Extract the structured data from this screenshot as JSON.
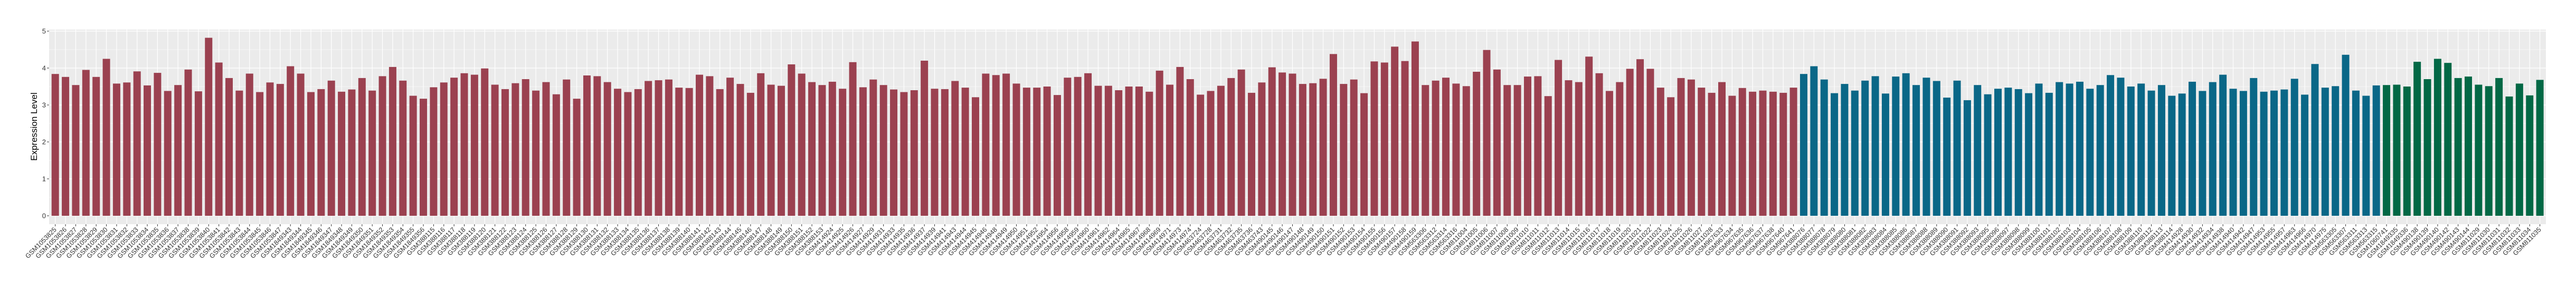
{
  "chart_data": {
    "type": "bar",
    "title": "",
    "xlabel": "",
    "ylabel": "Expression Level",
    "ylim": [
      0,
      5
    ],
    "yticks": [
      0,
      1,
      2,
      3,
      4,
      5
    ],
    "grid": true,
    "panel_background": "#EBEBEB",
    "series": [
      {
        "color": "#9B4150",
        "categories": [
          "GSM1053825",
          "GSM1053826",
          "GSM1053827",
          "GSM1053828",
          "GSM1053829",
          "GSM1053830",
          "GSM1053831",
          "GSM1053832",
          "GSM1053833",
          "GSM1053834",
          "GSM1053835",
          "GSM1053836",
          "GSM1053837",
          "GSM1053838",
          "GSM1053839",
          "GSM1053840",
          "GSM1053841",
          "GSM1053842",
          "GSM1053843",
          "GSM1053844",
          "GSM1053845",
          "GSM1053846",
          "GSM1053847",
          "GSM1849343",
          "GSM1849344",
          "GSM1849345",
          "GSM1849346",
          "GSM1849347",
          "GSM1849348",
          "GSM1849349",
          "GSM1849350",
          "GSM1849351",
          "GSM1849352",
          "GSM1849353",
          "GSM1849354",
          "GSM1849355",
          "GSM1849356",
          "GSM388115",
          "GSM388116",
          "GSM388117",
          "GSM388118",
          "GSM388119",
          "GSM388120",
          "GSM388121",
          "GSM388122",
          "GSM388123",
          "GSM388124",
          "GSM388125",
          "GSM388126",
          "GSM388127",
          "GSM388128",
          "GSM388129",
          "GSM388130",
          "GSM388131",
          "GSM388132",
          "GSM388133",
          "GSM388134",
          "GSM388135",
          "GSM388136",
          "GSM388137",
          "GSM388138",
          "GSM388139",
          "GSM388140",
          "GSM388141",
          "GSM388142",
          "GSM388143",
          "GSM388144",
          "GSM388145",
          "GSM388146",
          "GSM388147",
          "GSM388148",
          "GSM388149",
          "GSM388150",
          "GSM388151",
          "GSM388152",
          "GSM388153",
          "GSM414924",
          "GSM414925",
          "GSM414926",
          "GSM414927",
          "GSM414929",
          "GSM414931",
          "GSM414933",
          "GSM414935",
          "GSM414936",
          "GSM414937",
          "GSM414939",
          "GSM414941",
          "GSM414943",
          "GSM414944",
          "GSM414945",
          "GSM414946",
          "GSM414948",
          "GSM414949",
          "GSM414950",
          "GSM414951",
          "GSM414952",
          "GSM414954",
          "GSM414956",
          "GSM414958",
          "GSM414959",
          "GSM414960",
          "GSM414961",
          "GSM414962",
          "GSM414964",
          "GSM414965",
          "GSM414967",
          "GSM414968",
          "GSM414969",
          "GSM414971",
          "GSM414973",
          "GSM414974",
          "GSM463724",
          "GSM463728",
          "GSM463731",
          "GSM463732",
          "GSM463735",
          "GSM463736",
          "GSM463743",
          "GSM490145",
          "GSM490146",
          "GSM490147",
          "GSM490148",
          "GSM490149",
          "GSM490150",
          "GSM490151",
          "GSM490152",
          "GSM490153",
          "GSM490154",
          "GSM490155",
          "GSM490156",
          "GSM490157",
          "GSM490158",
          "GSM490159",
          "GSM563306",
          "GSM563312",
          "GSM563314",
          "GSM563316",
          "GSM811004",
          "GSM811005",
          "GSM811006",
          "GSM811007",
          "GSM811008",
          "GSM811009",
          "GSM811010",
          "GSM811011",
          "GSM811012",
          "GSM811013",
          "GSM811014",
          "GSM811015",
          "GSM811016",
          "GSM811017",
          "GSM811018",
          "GSM811019",
          "GSM811020",
          "GSM811021",
          "GSM811022",
          "GSM811023",
          "GSM811024",
          "GSM811025",
          "GSM811026",
          "GSM811027",
          "GSM811028",
          "GSM967633",
          "GSM967634",
          "GSM967635",
          "GSM967636",
          "GSM967637",
          "GSM967638",
          "GSM967640",
          "GSM967641"
        ],
        "values": [
          3.84,
          3.76,
          3.54,
          3.95,
          3.76,
          4.25,
          3.58,
          3.61,
          3.91,
          3.53,
          3.87,
          3.38,
          3.54,
          3.96,
          3.37,
          4.82,
          4.15,
          3.73,
          3.39,
          3.85,
          3.35,
          3.61,
          3.57,
          4.05,
          3.85,
          3.35,
          3.43,
          3.66,
          3.36,
          3.42,
          3.73,
          3.39,
          3.78,
          4.03,
          3.66,
          3.25,
          3.17,
          3.48,
          3.61,
          3.74,
          3.86,
          3.82,
          3.99,
          3.55,
          3.43,
          3.59,
          3.7,
          3.39,
          3.62,
          3.29,
          3.69,
          3.17,
          3.8,
          3.78,
          3.62,
          3.44,
          3.35,
          3.43,
          3.65,
          3.67,
          3.69,
          3.47,
          3.46,
          3.82,
          3.78,
          3.43,
          3.74,
          3.57,
          3.33,
          3.86,
          3.55,
          3.52,
          4.1,
          3.85,
          3.62,
          3.54,
          3.63,
          3.44,
          4.16,
          3.48,
          3.69,
          3.54,
          3.42,
          3.35,
          3.4,
          4.2,
          3.44,
          3.43,
          3.65,
          3.47,
          3.21,
          3.85,
          3.81,
          3.85,
          3.58,
          3.47,
          3.47,
          3.5,
          3.27,
          3.74,
          3.76,
          3.86,
          3.52,
          3.52,
          3.4,
          3.5,
          3.5,
          3.36,
          3.93,
          3.55,
          4.03,
          3.7,
          3.28,
          3.38,
          3.52,
          3.73,
          3.96,
          3.33,
          3.61,
          4.02,
          3.88,
          3.85,
          3.57,
          3.59,
          3.71,
          4.38,
          3.57,
          3.69,
          3.32,
          4.18,
          4.15,
          4.58,
          4.19,
          4.72,
          3.54,
          3.66,
          3.74,
          3.58,
          3.51,
          3.9,
          4.49,
          3.96,
          3.54,
          3.54,
          3.77,
          3.78,
          3.24,
          4.22,
          3.67,
          3.62,
          4.31,
          3.86,
          3.38,
          3.62,
          3.98,
          4.24,
          3.98,
          3.47,
          3.21,
          3.73,
          3.69,
          3.47,
          3.33,
          3.62,
          3.25,
          3.46,
          3.36,
          3.39,
          3.36,
          3.33,
          3.47
        ]
      },
      {
        "color": "#0A6787",
        "categories": [
          "GSM388076",
          "GSM388077",
          "GSM388078",
          "GSM388079",
          "GSM388080",
          "GSM388081",
          "GSM388082",
          "GSM388083",
          "GSM388084",
          "GSM388085",
          "GSM388086",
          "GSM388087",
          "GSM388088",
          "GSM388089",
          "GSM388090",
          "GSM388091",
          "GSM388092",
          "GSM388093",
          "GSM388095",
          "GSM388096",
          "GSM388097",
          "GSM388098",
          "GSM388099",
          "GSM388100",
          "GSM388101",
          "GSM388102",
          "GSM388103",
          "GSM388104",
          "GSM388105",
          "GSM388106",
          "GSM388107",
          "GSM388108",
          "GSM388109",
          "GSM388110",
          "GSM388112",
          "GSM388113",
          "GSM388114",
          "GSM414928",
          "GSM414930",
          "GSM414932",
          "GSM414934",
          "GSM414938",
          "GSM414940",
          "GSM414942",
          "GSM414947",
          "GSM414953",
          "GSM414955",
          "GSM414957",
          "GSM414963",
          "GSM414966",
          "GSM414970",
          "GSM414975",
          "GSM563305",
          "GSM563307",
          "GSM563311",
          "GSM563313",
          "GSM563315"
        ],
        "values": [
          3.84,
          4.05,
          3.69,
          3.32,
          3.57,
          3.39,
          3.66,
          3.78,
          3.31,
          3.77,
          3.86,
          3.54,
          3.74,
          3.65,
          3.2,
          3.66,
          3.13,
          3.54,
          3.29,
          3.44,
          3.47,
          3.43,
          3.32,
          3.58,
          3.33,
          3.62,
          3.58,
          3.63,
          3.44,
          3.54,
          3.81,
          3.74,
          3.5,
          3.58,
          3.39,
          3.54,
          3.25,
          3.31,
          3.63,
          3.38,
          3.62,
          3.82,
          3.44,
          3.38,
          3.73,
          3.36,
          3.39,
          3.42,
          3.71,
          3.28,
          4.11,
          3.47,
          3.51,
          4.36,
          3.39,
          3.25,
          3.53
        ]
      },
      {
        "color": "#026845",
        "categories": [
          "GSM1060741",
          "GSM1849335",
          "GSM1849336",
          "GSM490138",
          "GSM490139",
          "GSM490140",
          "GSM490142",
          "GSM490143",
          "GSM490144",
          "GSM811029",
          "GSM811030",
          "GSM811031",
          "GSM811032",
          "GSM811033",
          "GSM811034",
          "GSM811035"
        ],
        "values": [
          3.54,
          3.55,
          3.5,
          4.17,
          3.7,
          4.25,
          4.14,
          3.73,
          3.77,
          3.55,
          3.51,
          3.73,
          3.23,
          3.58,
          3.26,
          3.68
        ]
      }
    ]
  }
}
